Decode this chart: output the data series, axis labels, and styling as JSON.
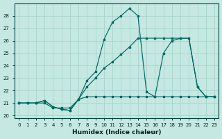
{
  "xlabel": "Humidex (Indice chaleur)",
  "xlim_min": -0.5,
  "xlim_max": 23.5,
  "ylim_min": 19.8,
  "ylim_max": 29.0,
  "yticks": [
    20,
    21,
    22,
    23,
    24,
    25,
    26,
    27,
    28
  ],
  "xticks": [
    0,
    1,
    2,
    3,
    4,
    5,
    6,
    7,
    8,
    9,
    10,
    11,
    12,
    13,
    14,
    15,
    16,
    17,
    18,
    19,
    20,
    21,
    22,
    23
  ],
  "bg_color": "#c5e8e2",
  "grid_color": "#a8d4cc",
  "line_color": "#006660",
  "s1_x": [
    0,
    1,
    2,
    3,
    4,
    5,
    6,
    7,
    8,
    9,
    10,
    11,
    12,
    13,
    14,
    15,
    16,
    17,
    18,
    19,
    20,
    21,
    22,
    23
  ],
  "s1_y": [
    21.0,
    21.0,
    21.0,
    21.0,
    20.6,
    20.6,
    20.6,
    21.3,
    21.5,
    21.5,
    21.5,
    21.5,
    21.5,
    21.5,
    21.5,
    21.5,
    21.5,
    21.5,
    21.5,
    21.5,
    21.5,
    21.5,
    21.5,
    21.5
  ],
  "s2_x": [
    0,
    1,
    2,
    3,
    4,
    5,
    6,
    7,
    8,
    9,
    10,
    11,
    12,
    13,
    14,
    15,
    16,
    17,
    18,
    19,
    20,
    21,
    22,
    23
  ],
  "s2_y": [
    21.0,
    21.0,
    21.0,
    21.2,
    20.7,
    20.5,
    20.4,
    21.3,
    22.8,
    23.5,
    26.1,
    27.5,
    28.0,
    28.6,
    28.0,
    21.9,
    21.5,
    25.0,
    26.0,
    26.2,
    26.2,
    22.3,
    21.5,
    21.5
  ],
  "s3_x": [
    0,
    1,
    2,
    3,
    4,
    5,
    6,
    7,
    8,
    9,
    10,
    11,
    12,
    13,
    14,
    15,
    16,
    17,
    18,
    19,
    20,
    21,
    22,
    23
  ],
  "s3_y": [
    21.0,
    21.0,
    21.0,
    21.2,
    20.7,
    20.5,
    20.4,
    21.3,
    22.3,
    23.0,
    23.8,
    24.3,
    24.9,
    25.5,
    26.2,
    26.2,
    26.2,
    26.2,
    26.2,
    26.2,
    26.2,
    22.3,
    21.5,
    21.5
  ]
}
